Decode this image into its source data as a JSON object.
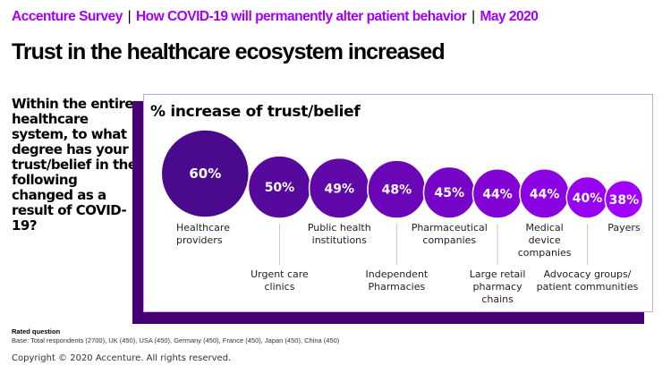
{
  "header": {
    "kicker_parts": [
      "Accenture Survey",
      "How COVID-19 will permanently alter patient behavior",
      "May 2020"
    ],
    "kicker_separator": "|",
    "title": "Trust in the healthcare ecosystem increased"
  },
  "question": "Within the entire healthcare system, to what degree has your trust/belief in the following changed as a result of COVID-19?",
  "colors": {
    "accent": "#A100FF",
    "frame": "#460073",
    "panel_border": "#C9A3E6",
    "bubble_start": "#4B0A8E",
    "bubble_end": "#A100FF"
  },
  "chart_data": {
    "type": "bubble",
    "title": "% increase of trust/belief",
    "unit": "%",
    "categories": [
      "Healthcare providers",
      "Urgent care clinics",
      "Public health institutions",
      "Independent Pharmacies",
      "Pharmaceutical companies",
      "Large retail pharmacy chains",
      "Medical device companies",
      "Advocacy groups/ patient communities",
      "Payers"
    ],
    "values": [
      60,
      50,
      49,
      48,
      45,
      44,
      44,
      40,
      38
    ],
    "value_labels": [
      "60%",
      "50%",
      "49%",
      "48%",
      "45%",
      "44%",
      "44%",
      "40%",
      "38%"
    ],
    "label_lines": [
      [
        "Healthcare",
        "providers"
      ],
      [
        "Urgent care",
        "clinics"
      ],
      [
        "Public health",
        "institutions"
      ],
      [
        "Independent",
        "Pharmacies"
      ],
      [
        "Pharmaceutical",
        "companies"
      ],
      [
        "Large retail",
        "pharmacy",
        "chains"
      ],
      [
        "Medical",
        "device",
        "companies"
      ],
      [
        "Advocacy groups/",
        "patient communities"
      ],
      [
        "Payers"
      ]
    ],
    "label_position": [
      "above",
      "below",
      "above",
      "below",
      "above",
      "below",
      "above",
      "below",
      "above"
    ]
  },
  "footer": {
    "rated": "Rated question",
    "base": "Base: Total respondents (2700), UK (450), USA (450), Germany (450), France (450), Japan (450), China (450)",
    "copyright": "Copyright © 2020 Accenture. All rights reserved."
  }
}
